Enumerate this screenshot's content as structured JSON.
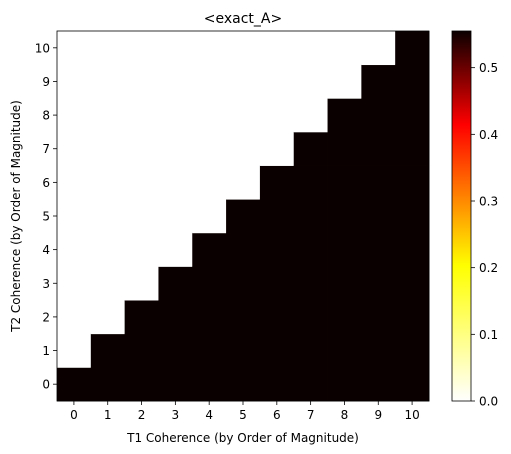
{
  "chart_data": {
    "type": "heatmap",
    "title": "<exact_A>",
    "xlabel": "T1 Coherence (by Order of Magnitude)",
    "ylabel": "T2 Coherence (by Order of Magnitude)",
    "x": [
      0,
      1,
      2,
      3,
      4,
      5,
      6,
      7,
      8,
      9,
      10
    ],
    "y": [
      0,
      1,
      2,
      3,
      4,
      5,
      6,
      7,
      8,
      9,
      10
    ],
    "value_filled": 0.555,
    "value_empty": 0.0,
    "fill_rule": "cell (x, y) shows value_filled when y <= x, otherwise value_empty",
    "colormap": "hot_r",
    "colormap_stops": [
      "#ffffff",
      "#ffff00",
      "#ff0000",
      "#000000"
    ],
    "colorbar": {
      "vmin": 0.0,
      "vmax": 0.555,
      "ticks": [
        0.0,
        0.1,
        0.2,
        0.3,
        0.4,
        0.5
      ],
      "tick_labels": [
        "0.0",
        "0.1",
        "0.2",
        "0.3",
        "0.4",
        "0.5"
      ]
    }
  }
}
